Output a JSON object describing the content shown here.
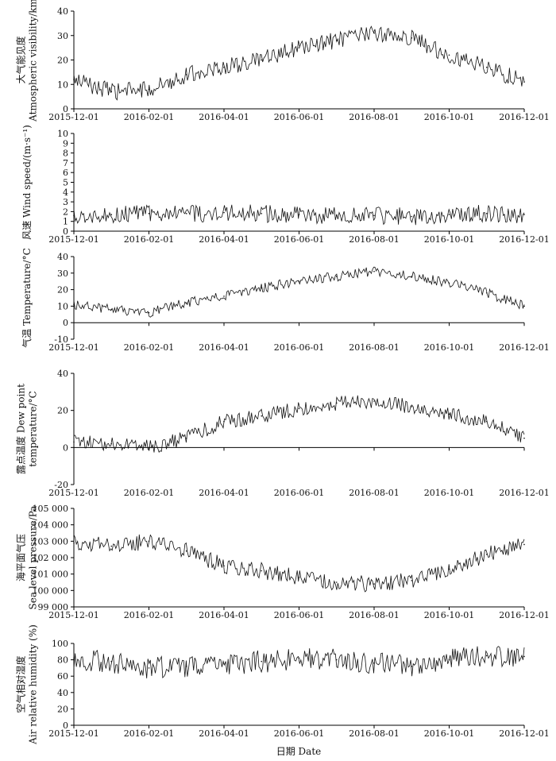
{
  "figure": {
    "xlabel": "日期 Date"
  },
  "chart_data": [
    {
      "type": "line",
      "ylabel_lines": [
        "大气能见度",
        "Atmospheric visibility/km"
      ],
      "ylim": [
        0,
        40
      ],
      "yticks": [
        "0",
        "10",
        "20",
        "30",
        "40"
      ],
      "x": [
        "2015-12-01",
        "2016-01-01",
        "2016-02-01",
        "2016-03-01",
        "2016-04-01",
        "2016-05-01",
        "2016-06-01",
        "2016-07-01",
        "2016-08-01",
        "2016-09-01",
        "2016-10-01",
        "2016-11-01",
        "2016-12-01"
      ],
      "xticks": [
        "2015-12-01",
        "2016-02-01",
        "2016-04-01",
        "2016-06-01",
        "2016-08-01",
        "2016-10-01",
        "2016-12-01"
      ],
      "series": [
        {
          "name": "Atmospheric visibility",
          "values": [
            12,
            7,
            8,
            14,
            17,
            20,
            25,
            28,
            31,
            29,
            22,
            17,
            11
          ]
        }
      ],
      "noise": 3.5
    },
    {
      "type": "line",
      "ylabel_lines": [
        "风速 Wind speed/(m·s⁻¹)"
      ],
      "ylim": [
        0,
        10
      ],
      "yticks": [
        "0",
        "1",
        "2",
        "3",
        "4",
        "5",
        "6",
        "7",
        "8",
        "9",
        "10"
      ],
      "x": [
        "2015-12-01",
        "2016-01-01",
        "2016-02-01",
        "2016-03-01",
        "2016-04-01",
        "2016-05-01",
        "2016-06-01",
        "2016-07-01",
        "2016-08-01",
        "2016-09-01",
        "2016-10-01",
        "2016-11-01",
        "2016-12-01"
      ],
      "xticks": [
        "2015-12-01",
        "2016-02-01",
        "2016-04-01",
        "2016-06-01",
        "2016-08-01",
        "2016-10-01",
        "2016-12-01"
      ],
      "series": [
        {
          "name": "Wind speed",
          "values": [
            1.6,
            1.7,
            1.8,
            1.8,
            1.9,
            1.8,
            1.7,
            1.6,
            1.6,
            1.5,
            1.7,
            1.8,
            1.7
          ]
        }
      ],
      "noise": 0.9
    },
    {
      "type": "line",
      "ylabel_lines": [
        "气温 Temperature/°C"
      ],
      "ylim": [
        -10,
        40
      ],
      "yticks": [
        "-10",
        "0",
        "10",
        "20",
        "30",
        "40"
      ],
      "x": [
        "2015-12-01",
        "2016-01-01",
        "2016-02-01",
        "2016-03-01",
        "2016-04-01",
        "2016-05-01",
        "2016-06-01",
        "2016-07-01",
        "2016-08-01",
        "2016-09-01",
        "2016-10-01",
        "2016-11-01",
        "2016-12-01"
      ],
      "xticks": [
        "2015-12-01",
        "2016-02-01",
        "2016-04-01",
        "2016-06-01",
        "2016-08-01",
        "2016-10-01",
        "2016-12-01"
      ],
      "series": [
        {
          "name": "Temperature",
          "values": [
            11,
            8,
            6,
            12,
            16,
            21,
            25,
            28,
            31,
            28,
            24,
            18,
            10
          ]
        }
      ],
      "noise": 3
    },
    {
      "type": "line",
      "ylabel_lines": [
        "露点温度 Dew point",
        "temperature/°C"
      ],
      "ylim": [
        -20,
        40
      ],
      "yticks": [
        "-20",
        "0",
        "20",
        "40"
      ],
      "x": [
        "2015-12-01",
        "2016-01-01",
        "2016-02-01",
        "2016-03-01",
        "2016-04-01",
        "2016-05-01",
        "2016-06-01",
        "2016-07-01",
        "2016-08-01",
        "2016-09-01",
        "2016-10-01",
        "2016-11-01",
        "2016-12-01"
      ],
      "xticks": [
        "2015-12-01",
        "2016-02-01",
        "2016-04-01",
        "2016-06-01",
        "2016-08-01",
        "2016-10-01",
        "2016-12-01"
      ],
      "series": [
        {
          "name": "Dew point temperature",
          "values": [
            3,
            2,
            0,
            5,
            14,
            17,
            21,
            24,
            25,
            22,
            18,
            14,
            5
          ]
        }
      ],
      "noise": 4
    },
    {
      "type": "line",
      "ylabel_lines": [
        "海平面气压",
        "Sea level pressure/Pa"
      ],
      "ylim": [
        99000,
        105000
      ],
      "yticks": [
        "99 000",
        "100 000",
        "101 000",
        "102 000",
        "103 000",
        "104 000",
        "105 000"
      ],
      "x": [
        "2015-12-01",
        "2016-01-01",
        "2016-02-01",
        "2016-03-01",
        "2016-04-01",
        "2016-05-01",
        "2016-06-01",
        "2016-07-01",
        "2016-08-01",
        "2016-09-01",
        "2016-10-01",
        "2016-11-01",
        "2016-12-01"
      ],
      "xticks": [
        "2015-12-01",
        "2016-02-01",
        "2016-04-01",
        "2016-06-01",
        "2016-08-01",
        "2016-10-01",
        "2016-12-01"
      ],
      "series": [
        {
          "name": "Sea level pressure",
          "values": [
            102900,
            102700,
            103000,
            102400,
            101500,
            101200,
            100800,
            100500,
            100400,
            100600,
            101300,
            102200,
            102800
          ]
        }
      ],
      "noise": 500
    },
    {
      "type": "line",
      "ylabel_lines": [
        "空气相对湿度",
        "Air relative humidity (%)"
      ],
      "ylim": [
        0,
        100
      ],
      "yticks": [
        "0",
        "20",
        "40",
        "60",
        "80",
        "100"
      ],
      "x": [
        "2015-12-01",
        "2016-01-01",
        "2016-02-01",
        "2016-03-01",
        "2016-04-01",
        "2016-05-01",
        "2016-06-01",
        "2016-07-01",
        "2016-08-01",
        "2016-09-01",
        "2016-10-01",
        "2016-11-01",
        "2016-12-01"
      ],
      "xticks": [
        "2015-12-01",
        "2016-02-01",
        "2016-04-01",
        "2016-06-01",
        "2016-08-01",
        "2016-10-01",
        "2016-12-01"
      ],
      "series": [
        {
          "name": "Air relative humidity",
          "values": [
            82,
            78,
            70,
            72,
            75,
            78,
            82,
            80,
            76,
            72,
            80,
            85,
            84
          ]
        }
      ],
      "noise": 14
    }
  ]
}
